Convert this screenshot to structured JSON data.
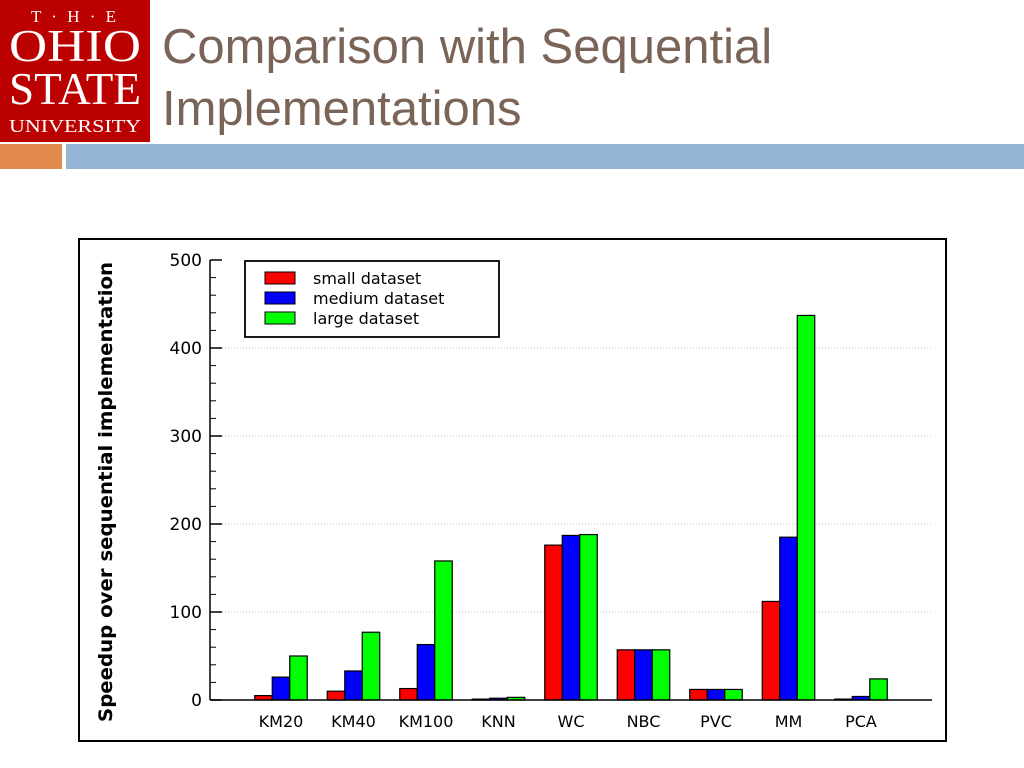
{
  "logo": {
    "line1": "T · H · E",
    "line2": "OHIO",
    "line3": "STATE",
    "line4": "UNIVERSITY"
  },
  "slide": {
    "title_line1": "Comparison with Sequential",
    "title_line2": "Implementations"
  },
  "colors": {
    "brand_red": "#bb0000",
    "title_text": "#7a6458",
    "accent_orange": "#e48a4d",
    "accent_blue": "#93b6d6"
  },
  "chart_data": {
    "type": "bar",
    "title": "",
    "xlabel": "",
    "ylabel": "Speedup over sequential implementation",
    "ylim": [
      0,
      500
    ],
    "yticks": [
      "0",
      "100",
      "200",
      "300",
      "400",
      "500"
    ],
    "grid": true,
    "legend_position": "top-left",
    "categories": [
      "KM20",
      "KM40",
      "KM100",
      "KNN",
      "WC",
      "NBC",
      "PVC",
      "MM",
      "PCA"
    ],
    "series": [
      {
        "name": "small dataset",
        "color": "#ff0000",
        "values": [
          5,
          10,
          13,
          1,
          176,
          57,
          12,
          112,
          1
        ]
      },
      {
        "name": "medium dataset",
        "color": "#0000ff",
        "values": [
          26,
          33,
          63,
          2,
          187,
          57,
          12,
          185,
          4
        ]
      },
      {
        "name": "large dataset",
        "color": "#00ff00",
        "values": [
          50,
          77,
          158,
          3,
          188,
          57,
          12,
          437,
          24
        ]
      }
    ]
  }
}
